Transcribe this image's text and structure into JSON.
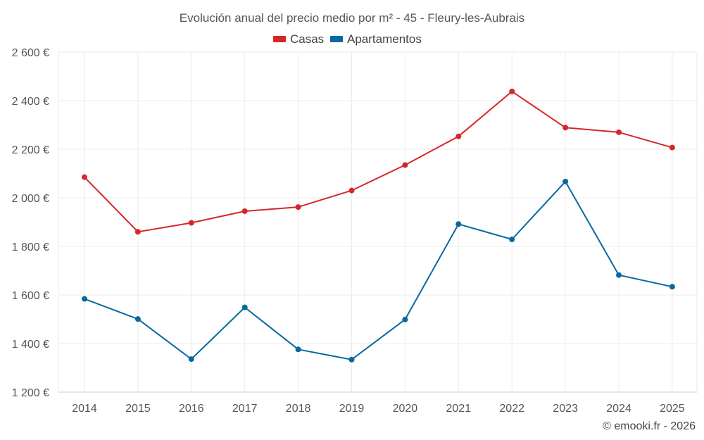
{
  "chart_data": {
    "type": "line",
    "title": "Evolución anual del precio medio por m² - 45 - Fleury-les-Aubrais",
    "categories": [
      "2014",
      "2015",
      "2016",
      "2017",
      "2018",
      "2019",
      "2020",
      "2021",
      "2022",
      "2023",
      "2024",
      "2025"
    ],
    "series": [
      {
        "name": "Casas",
        "color": "#d62728",
        "values": [
          2085,
          1860,
          1897,
          1945,
          1962,
          2030,
          2135,
          2253,
          2438,
          2289,
          2270,
          2207
        ]
      },
      {
        "name": "Apartamentos",
        "color": "#0868a0",
        "values": [
          1584,
          1501,
          1336,
          1549,
          1376,
          1334,
          1499,
          1892,
          1829,
          2067,
          1682,
          1634
        ]
      }
    ],
    "ylim": [
      1200,
      2600
    ],
    "yticks": [
      1200,
      1400,
      1600,
      1800,
      2000,
      2200,
      2400,
      2600
    ],
    "ytick_labels": [
      "1 200 €",
      "1 400 €",
      "1 600 €",
      "1 800 €",
      "2 000 €",
      "2 200 €",
      "2 400 €",
      "2 600 €"
    ],
    "xlabel": "",
    "ylabel": "",
    "grid": true,
    "legend": "top-center"
  },
  "credit": "© emooki.fr - 2026"
}
